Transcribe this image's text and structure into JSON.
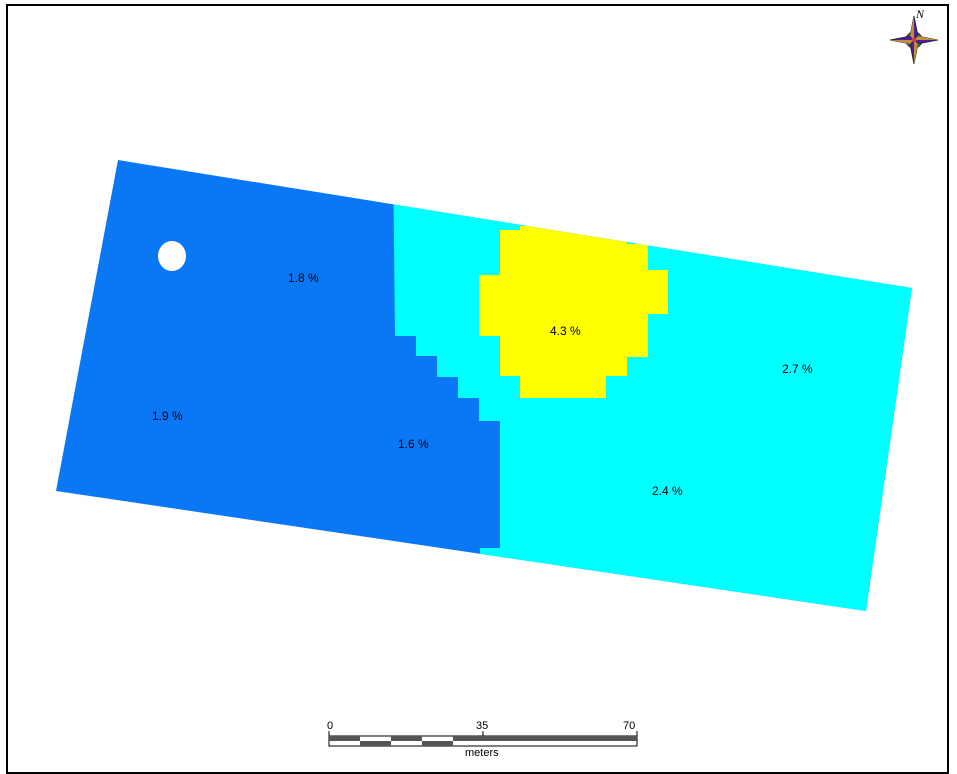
{
  "map": {
    "colors": {
      "zone_dark_blue": "#0a78f5",
      "zone_cyan": "#00ffff",
      "zone_yellow": "#ffff00",
      "frame": "#000000"
    },
    "zone_labels": [
      {
        "id": "zone-18",
        "text": "1.8 %"
      },
      {
        "id": "zone-19",
        "text": "1.9 %"
      },
      {
        "id": "zone-16",
        "text": "1.6 %"
      },
      {
        "id": "zone-43",
        "text": "4.3 %"
      },
      {
        "id": "zone-27",
        "text": "2.7 %"
      },
      {
        "id": "zone-24",
        "text": "2.4 %"
      }
    ],
    "north_arrow": {
      "icon": "compass-rose-icon",
      "letter": "N"
    },
    "scale_bar": {
      "ticks": [
        "0",
        "35",
        "70"
      ],
      "unit": "meters"
    }
  }
}
